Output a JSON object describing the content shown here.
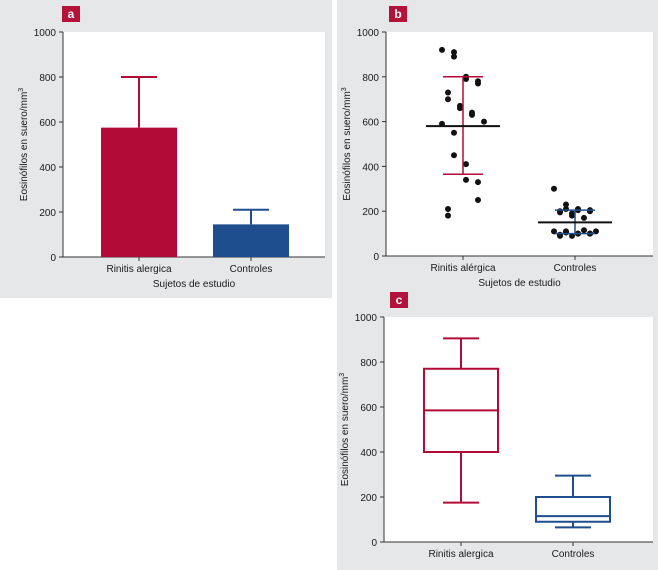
{
  "colors": {
    "red": "#b20b38",
    "blue": "#1f4e8e",
    "black": "#111111",
    "axis": "#333333"
  },
  "chart_data": [
    {
      "panel_label": "a",
      "type": "bar",
      "ylabel": "Eosinófilos en suero/mm",
      "ylabel_sup": "3",
      "xlabel": "Sujetos de estudio",
      "ylim": [
        0,
        1000
      ],
      "yticks": [
        "0",
        "200",
        "400",
        "600",
        "800",
        "1000"
      ],
      "categories": [
        "Rinitis alergica",
        "Controles"
      ],
      "values": [
        575,
        145
      ],
      "error_upper": [
        800,
        210
      ],
      "colors": [
        "#b20b38",
        "#1f4e8e"
      ]
    },
    {
      "panel_label": "b",
      "type": "scatter",
      "ylabel": "Eosinófilos en suero/mm",
      "ylabel_sup": "3",
      "xlabel": "Sujetos de estudio",
      "ylim": [
        0,
        1000
      ],
      "yticks": [
        "0",
        "200",
        "400",
        "600",
        "800",
        "1000"
      ],
      "categories": [
        "Rinitis alérgica",
        "Controles"
      ],
      "series": [
        {
          "values": [
            920,
            910,
            890,
            800,
            790,
            780,
            770,
            730,
            700,
            670,
            660,
            640,
            630,
            600,
            590,
            550,
            450,
            410,
            340,
            330,
            250,
            210,
            180
          ],
          "mean": 580,
          "sd_low": 365,
          "sd_high": 800,
          "bar_color": "#b20b38"
        },
        {
          "values": [
            300,
            230,
            210,
            210,
            205,
            205,
            200,
            200,
            195,
            190,
            180,
            170,
            115,
            110,
            110,
            110,
            105,
            100,
            100,
            100,
            100,
            95,
            90,
            90
          ],
          "mean": 150,
          "sd_low": 100,
          "sd_high": 205,
          "bar_color": "#1f4e8e"
        }
      ]
    },
    {
      "panel_label": "c",
      "type": "box",
      "ylabel": "Eosinófilos en suero/mm",
      "ylabel_sup": "3",
      "ylim": [
        0,
        1000
      ],
      "yticks": [
        "0",
        "200",
        "400",
        "600",
        "800",
        "1000"
      ],
      "categories": [
        "Rinitis alergica",
        "Controles"
      ],
      "boxes": [
        {
          "min": 175,
          "q1": 400,
          "median": 585,
          "q3": 770,
          "max": 905,
          "color": "#b20b38"
        },
        {
          "min": 65,
          "q1": 90,
          "median": 115,
          "q3": 200,
          "max": 295,
          "color": "#1f4e8e"
        }
      ]
    }
  ]
}
